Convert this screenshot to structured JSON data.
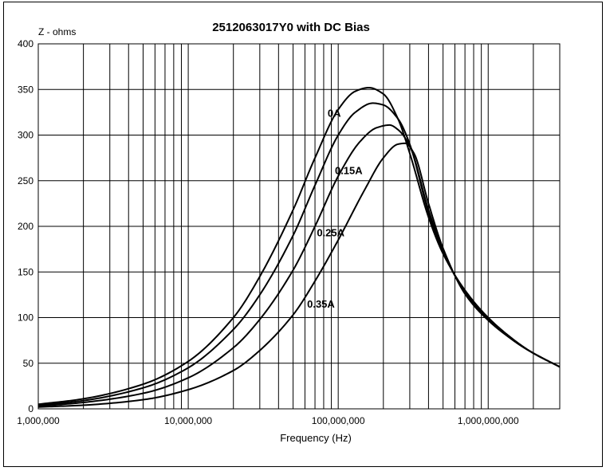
{
  "chart_data": {
    "type": "line",
    "title": "2512063017Y0 with DC Bias",
    "xlabel": "Frequency (Hz)",
    "ylabel": "Z - ohms",
    "xscale": "log",
    "xlim": [
      1000000,
      3000000000
    ],
    "ylim": [
      0,
      400
    ],
    "grid": true,
    "xticks": [
      1000000,
      10000000,
      100000000,
      1000000000
    ],
    "xtick_labels": [
      "1,000,000",
      "10,000,000",
      "100,000,000",
      "1,000,000,000"
    ],
    "yticks": [
      0,
      50,
      100,
      150,
      200,
      250,
      300,
      350,
      400
    ],
    "ytick_labels": [
      "0",
      "50",
      "100",
      "150",
      "200",
      "250",
      "300",
      "350",
      "400"
    ],
    "series": [
      {
        "name": "0A",
        "x": [
          1000000,
          2000000,
          5000000,
          10000000,
          20000000,
          30000000,
          50000000,
          70000000,
          100000000,
          130000000,
          160000000,
          200000000,
          250000000,
          300000000,
          400000000,
          500000000,
          700000000,
          1000000000,
          1500000000,
          2000000000,
          3000000000
        ],
        "values": [
          5,
          11,
          27,
          52,
          100,
          145,
          218,
          275,
          328,
          348,
          352,
          345,
          318,
          280,
          210,
          170,
          130,
          100,
          75,
          61,
          46
        ]
      },
      {
        "name": "0.15A",
        "x": [
          1000000,
          2000000,
          5000000,
          10000000,
          20000000,
          30000000,
          50000000,
          70000000,
          100000000,
          130000000,
          170000000,
          200000000,
          250000000,
          300000000,
          400000000,
          500000000,
          700000000,
          1000000000,
          1500000000,
          2000000000,
          3000000000
        ],
        "values": [
          4,
          9,
          23,
          45,
          87,
          125,
          190,
          245,
          300,
          325,
          335,
          333,
          318,
          290,
          215,
          172,
          128,
          99,
          74,
          61,
          46
        ]
      },
      {
        "name": "0.25A",
        "x": [
          1000000,
          2000000,
          5000000,
          10000000,
          20000000,
          30000000,
          50000000,
          70000000,
          100000000,
          140000000,
          180000000,
          220000000,
          250000000,
          300000000,
          400000000,
          500000000,
          700000000,
          1000000000,
          1500000000,
          2000000000,
          3000000000
        ],
        "values": [
          3,
          7,
          17,
          34,
          67,
          98,
          152,
          200,
          255,
          293,
          308,
          311,
          306,
          288,
          218,
          174,
          127,
          98,
          74,
          61,
          46
        ]
      },
      {
        "name": "0.35A",
        "x": [
          1000000,
          2000000,
          5000000,
          10000000,
          20000000,
          30000000,
          50000000,
          70000000,
          100000000,
          150000000,
          200000000,
          250000000,
          280000000,
          320000000,
          400000000,
          500000000,
          700000000,
          1000000000,
          1500000000,
          2000000000,
          3000000000
        ],
        "values": [
          2,
          4,
          10,
          21,
          42,
          64,
          103,
          140,
          185,
          240,
          275,
          290,
          291,
          280,
          225,
          176,
          126,
          97,
          74,
          61,
          46
        ]
      }
    ],
    "annotations": [
      {
        "text": "0A",
        "x": 85000000,
        "y": 320
      },
      {
        "text": "0.15A",
        "x": 95000000,
        "y": 257
      },
      {
        "text": "0.25A",
        "x": 72000000,
        "y": 189
      },
      {
        "text": "0.35A",
        "x": 62000000,
        "y": 111
      }
    ]
  }
}
